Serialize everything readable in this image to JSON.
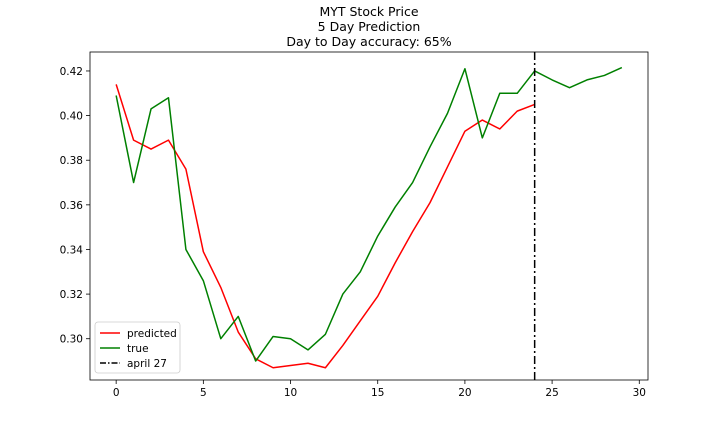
{
  "chart_data": {
    "type": "line",
    "title_lines": [
      "MYT Stock Price",
      "5 Day Prediction",
      "Day to Day accuracy: 65%"
    ],
    "xlabel": "",
    "ylabel": "",
    "xlim": [
      -1.5,
      30.5
    ],
    "ylim": [
      0.2815,
      0.4285
    ],
    "xticks": [
      0,
      5,
      10,
      15,
      20,
      25,
      30
    ],
    "yticks": [
      0.3,
      0.32,
      0.34,
      0.36,
      0.38,
      0.4,
      0.42
    ],
    "grid": false,
    "legend_position": "lower-left",
    "series": [
      {
        "name": "predicted",
        "color": "#ff0000",
        "x": [
          0,
          1,
          2,
          3,
          4,
          5,
          6,
          7,
          8,
          9,
          10,
          11,
          12,
          13,
          14,
          15,
          16,
          17,
          18,
          19,
          20,
          21,
          22,
          23,
          24
        ],
        "y": [
          0.414,
          0.389,
          0.385,
          0.389,
          0.376,
          0.339,
          0.323,
          0.303,
          0.291,
          0.287,
          0.288,
          0.289,
          0.287,
          0.297,
          0.308,
          0.319,
          0.334,
          0.348,
          0.361,
          0.377,
          0.393,
          0.398,
          0.394,
          0.402,
          0.405
        ]
      },
      {
        "name": "true",
        "color": "#008000",
        "x": [
          0,
          1,
          2,
          3,
          4,
          5,
          6,
          7,
          8,
          9,
          10,
          11,
          12,
          13,
          14,
          15,
          16,
          17,
          18,
          19,
          20,
          21,
          22,
          23,
          24,
          25,
          26,
          27,
          28,
          29
        ],
        "y": [
          0.409,
          0.37,
          0.403,
          0.408,
          0.34,
          0.326,
          0.3,
          0.31,
          0.29,
          0.301,
          0.3,
          0.295,
          0.302,
          0.32,
          0.33,
          0.346,
          0.359,
          0.37,
          0.386,
          0.401,
          0.421,
          0.39,
          0.41,
          0.41,
          0.42,
          0.416,
          0.4125,
          0.416,
          0.418,
          0.4215
        ]
      }
    ],
    "vlines": [
      {
        "name": "april 27",
        "x": 24,
        "color": "#000000",
        "style": "dashdot"
      }
    ]
  }
}
